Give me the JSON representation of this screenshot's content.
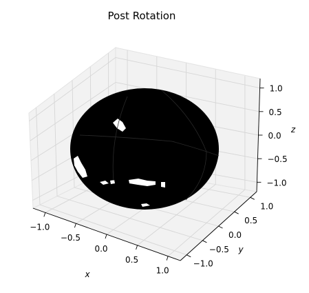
{
  "chart_data": {
    "type": "3d-surface",
    "title": "Post Rotation",
    "xlabel": "x",
    "ylabel": "y",
    "zlabel": "z",
    "xlim": [
      -1.2,
      1.2
    ],
    "ylim": [
      -1.2,
      1.2
    ],
    "zlim": [
      -1.2,
      1.2
    ],
    "xticks": [
      -1.0,
      -0.5,
      0.0,
      0.5,
      1.0
    ],
    "yticks": [
      -1.0,
      -0.5,
      0.0,
      0.5,
      1.0
    ],
    "zticks": [
      -1.0,
      -0.5,
      0.0,
      0.5,
      1.0
    ],
    "xtick_labels": [
      "−1.0",
      "−0.5",
      "0.0",
      "0.5",
      "1.0"
    ],
    "ytick_labels": [
      "−1.0",
      "−0.5",
      "0.0",
      "0.5",
      "1.0"
    ],
    "ztick_labels": [
      "−1.0",
      "−0.5",
      "0.0",
      "0.5",
      "1.0"
    ],
    "surface": {
      "shape": "unit sphere",
      "radius": 1.0,
      "fill_color": "#000000",
      "highlight_color": "#ffffff"
    },
    "grid": true,
    "pane_color": "#f2f2f2",
    "grid_color": "#d6d6d6"
  }
}
